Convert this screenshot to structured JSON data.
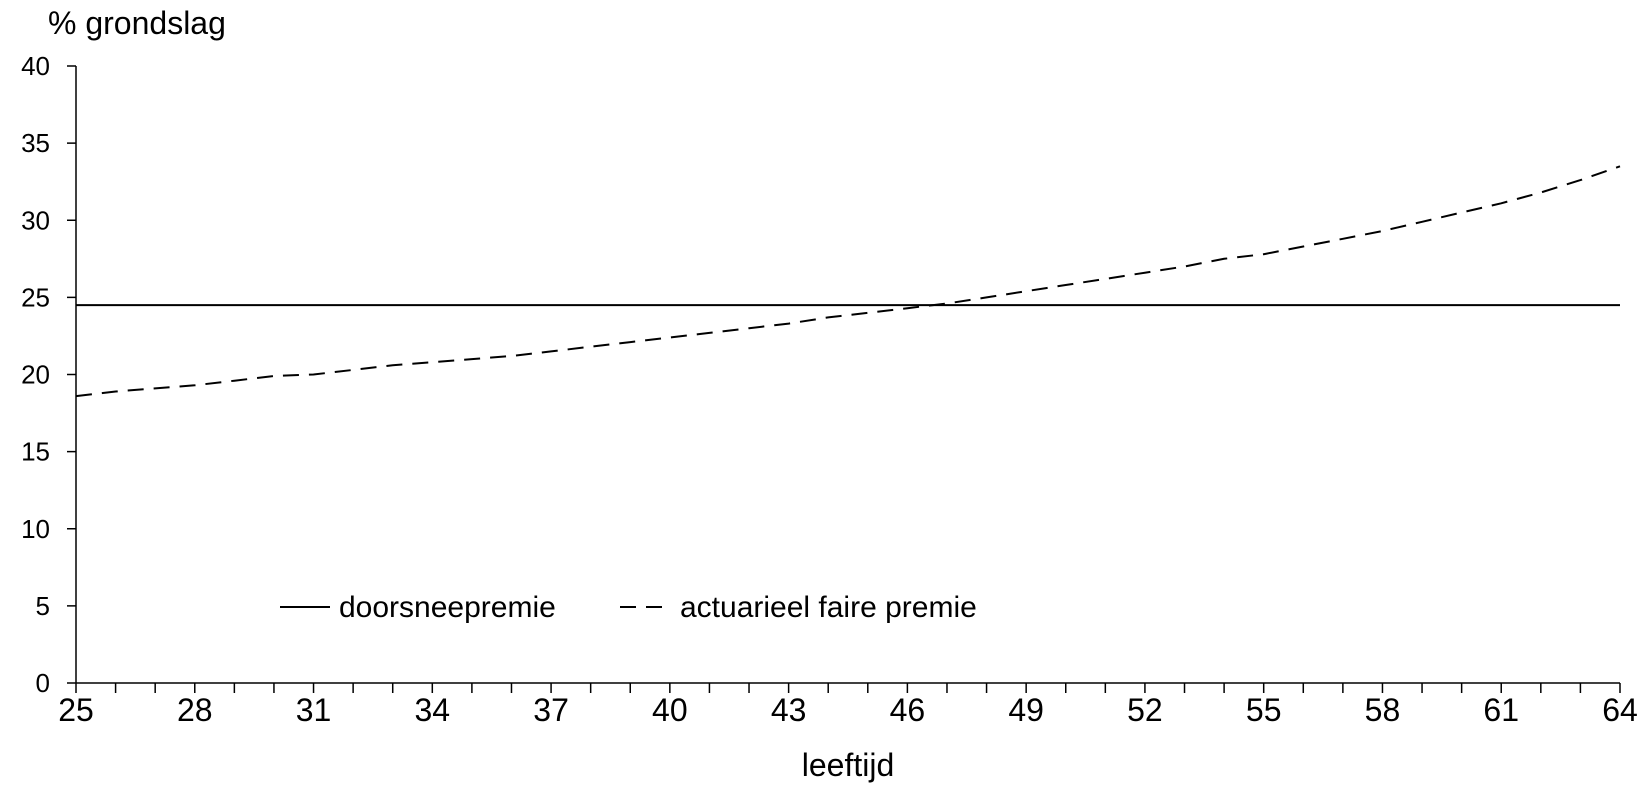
{
  "chart_data": {
    "type": "line",
    "ylabel": "% grondslag",
    "xlabel": "leeftijd",
    "xlim": [
      25,
      64
    ],
    "ylim": [
      0,
      40
    ],
    "x_ticks": [
      25,
      28,
      31,
      34,
      37,
      40,
      43,
      46,
      49,
      52,
      55,
      58,
      61,
      64
    ],
    "y_ticks": [
      0,
      5,
      10,
      15,
      20,
      25,
      30,
      35,
      40
    ],
    "grid": false,
    "legend_position": "bottom-left",
    "x": [
      25,
      26,
      27,
      28,
      29,
      30,
      31,
      32,
      33,
      34,
      35,
      36,
      37,
      38,
      39,
      40,
      41,
      42,
      43,
      44,
      45,
      46,
      47,
      48,
      49,
      50,
      51,
      52,
      53,
      54,
      55,
      56,
      57,
      58,
      59,
      60,
      61,
      62,
      63,
      64
    ],
    "series": [
      {
        "name": "doorsneepremie",
        "style": "solid",
        "color": "#000000",
        "values": [
          24.5,
          24.5,
          24.5,
          24.5,
          24.5,
          24.5,
          24.5,
          24.5,
          24.5,
          24.5,
          24.5,
          24.5,
          24.5,
          24.5,
          24.5,
          24.5,
          24.5,
          24.5,
          24.5,
          24.5,
          24.5,
          24.5,
          24.5,
          24.5,
          24.5,
          24.5,
          24.5,
          24.5,
          24.5,
          24.5,
          24.5,
          24.5,
          24.5,
          24.5,
          24.5,
          24.5,
          24.5,
          24.5,
          24.5,
          24.5
        ]
      },
      {
        "name": "actuarieel faire premie",
        "style": "dashed",
        "color": "#000000",
        "values": [
          18.6,
          18.9,
          19.1,
          19.3,
          19.6,
          19.9,
          20.0,
          20.3,
          20.6,
          20.8,
          21.0,
          21.2,
          21.5,
          21.8,
          22.1,
          22.4,
          22.7,
          23.0,
          23.3,
          23.7,
          24.0,
          24.3,
          24.6,
          25.0,
          25.4,
          25.8,
          26.2,
          26.6,
          27.0,
          27.5,
          27.8,
          28.3,
          28.8,
          29.3,
          29.9,
          30.5,
          31.1,
          31.8,
          32.6,
          33.5
        ]
      }
    ]
  }
}
